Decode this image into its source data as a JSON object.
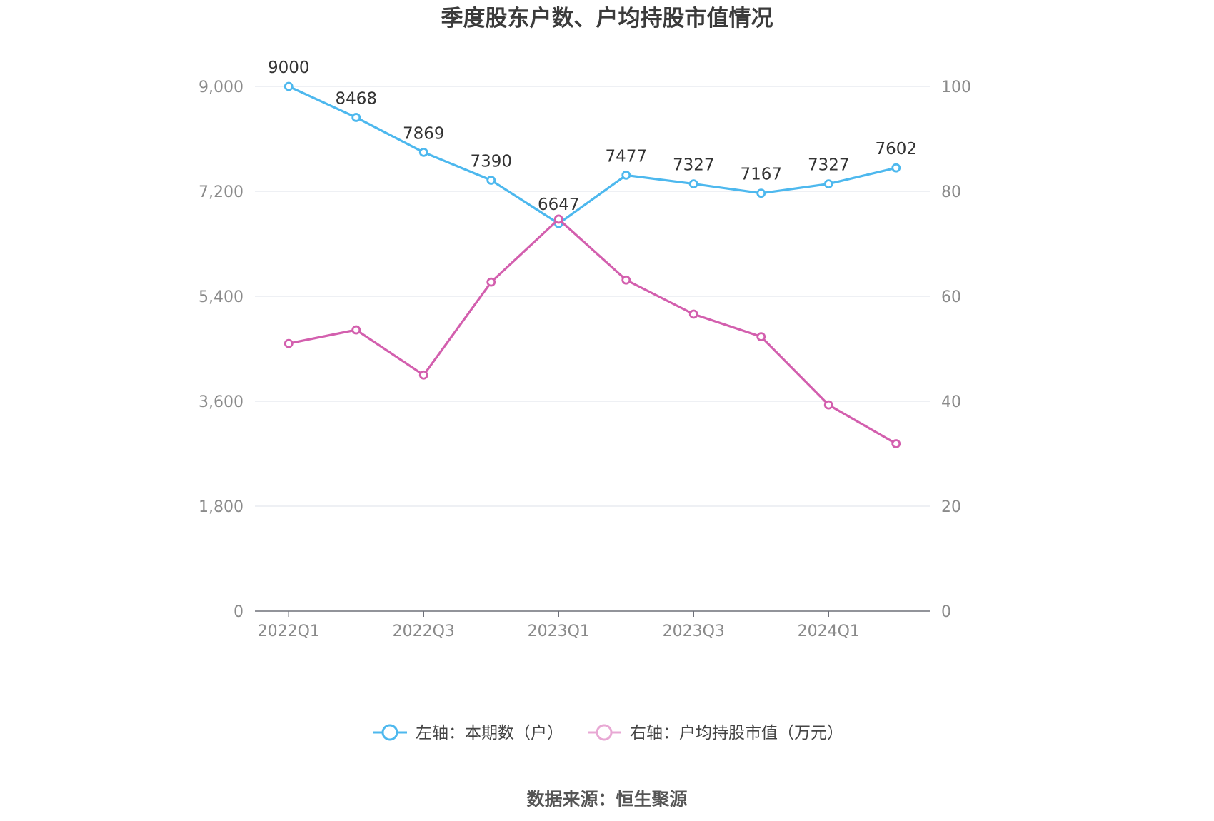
{
  "chart_data": {
    "type": "line",
    "title": "季度股东户数、户均持股市值情况",
    "categories": [
      "2022Q1",
      "2022Q2",
      "2022Q3",
      "2022Q4",
      "2023Q1",
      "2023Q2",
      "2023Q3",
      "2023Q4",
      "2024Q1",
      "2024Q2"
    ],
    "x_tick_labels": [
      "2022Q1",
      "2022Q3",
      "2023Q1",
      "2023Q3",
      "2024Q1"
    ],
    "y_left": {
      "ticks": [
        "0",
        "1,800",
        "3,600",
        "5,400",
        "7,200",
        "9,000"
      ],
      "ylim": [
        0,
        9000
      ]
    },
    "y_right": {
      "ticks": [
        "0",
        "20",
        "40",
        "60",
        "80",
        "100"
      ],
      "ylim": [
        0,
        100
      ]
    },
    "series": [
      {
        "name": "左轴：本期数（户）",
        "axis": "left",
        "color": "#4db8ee",
        "values": [
          9000,
          8468,
          7869,
          7390,
          6647,
          7477,
          7327,
          7167,
          7327,
          7602
        ],
        "labels": [
          "9000",
          "8468",
          "7869",
          "7390",
          "6647",
          "7477",
          "7327",
          "7167",
          "7327",
          "7602"
        ]
      },
      {
        "name": "右轴：户均持股市值（万元）",
        "axis": "right",
        "color": "#d35fae",
        "legend_color": "#e8a8d4",
        "values": [
          51,
          53.6,
          45,
          62.7,
          74.7,
          63.1,
          56.6,
          52.3,
          39.3,
          31.9
        ]
      }
    ],
    "grid": true,
    "legend_position": "bottom"
  },
  "source": "数据来源：恒生聚源"
}
